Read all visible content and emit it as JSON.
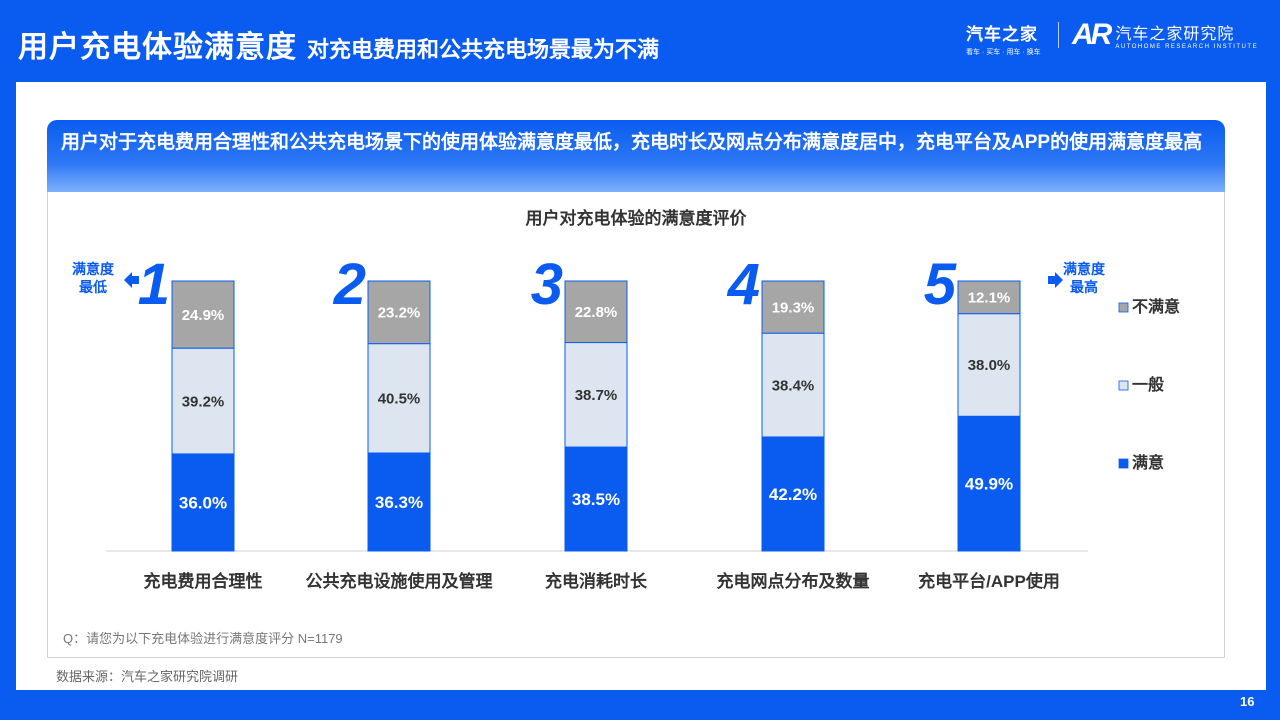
{
  "header": {
    "title": "用户充电体验满意度",
    "subtitle": "对充电费用和公共充电场景最为不满"
  },
  "logos": {
    "autohome_cn": "汽车之家",
    "autohome_slogan": "看车 · 买车 · 用车 · 换车",
    "institute_mark": "AR",
    "institute_cn": "汽车之家研究院",
    "institute_en": "AUTOHOME RESEARCH INSTITUTE"
  },
  "banner_text": "用户对于充电费用合理性和公共充电场景下的使用体验满意度最低，充电时长及网点分布满意度居中，充电平台及APP的使用满意度最高",
  "left_marker": "满意度\n最低",
  "right_marker": "满意度\n最高",
  "note": "Q：请您为以下充电体验进行满意度评分 N=1179",
  "source": "数据来源：汽车之家研究院调研",
  "page_number": "16",
  "colors": {
    "background": "#0a5cf0",
    "satisfied": "#0a5cf0",
    "neutral": "#dde6f0",
    "unsatisfied": "#a6a6a6",
    "rank_number": "#0a5cf0"
  },
  "chart_data": {
    "type": "bar",
    "stacked": true,
    "percent_stacked": true,
    "title": "用户对充电体验的满意度评价",
    "categories": [
      "充电费用合理性",
      "公共充电设施使用及管理",
      "充电消耗时长",
      "充电网点分布及数量",
      "充电平台/APP使用"
    ],
    "ranks": [
      "1",
      "2",
      "3",
      "4",
      "5"
    ],
    "series": [
      {
        "name": "满意",
        "values": [
          36.0,
          36.3,
          38.5,
          42.2,
          49.9
        ]
      },
      {
        "name": "一般",
        "values": [
          39.2,
          40.5,
          38.7,
          38.4,
          38.0
        ]
      },
      {
        "name": "不满意",
        "values": [
          24.9,
          23.2,
          22.8,
          19.3,
          12.1
        ]
      }
    ],
    "value_suffix": "%",
    "legend_order": [
      "不满意",
      "一般",
      "满意"
    ],
    "legend_position": "right",
    "grid": false
  }
}
